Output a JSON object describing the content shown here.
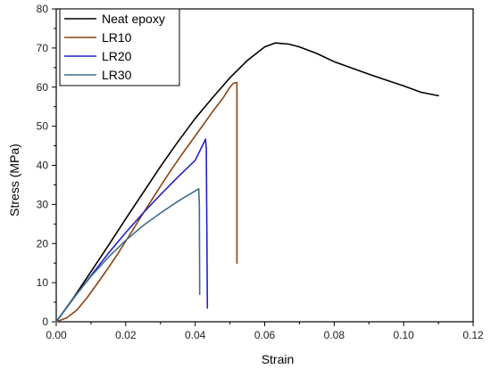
{
  "chart_data": {
    "type": "line",
    "title": "",
    "xlabel": "Strain",
    "ylabel": "Stress (MPa)",
    "xlim": [
      0.0,
      0.12
    ],
    "ylim": [
      0,
      80
    ],
    "xticks": [
      0.0,
      0.02,
      0.04,
      0.06,
      0.08,
      0.1,
      0.12
    ],
    "xtick_labels": [
      "0.00",
      "0.02",
      "0.04",
      "0.06",
      "0.08",
      "0.10",
      "0.12"
    ],
    "yticks": [
      0,
      10,
      20,
      30,
      40,
      50,
      60,
      70,
      80
    ],
    "ytick_labels": [
      "0",
      "10",
      "20",
      "30",
      "40",
      "50",
      "60",
      "70",
      "80"
    ],
    "grid": false,
    "legend_position": "top-left",
    "series": [
      {
        "name": "Neat epoxy",
        "color": "#000000",
        "x": [
          0,
          0.005,
          0.01,
          0.015,
          0.02,
          0.025,
          0.03,
          0.035,
          0.04,
          0.045,
          0.05,
          0.055,
          0.06,
          0.063,
          0.067,
          0.07,
          0.075,
          0.08,
          0.085,
          0.09,
          0.095,
          0.1,
          0.105,
          0.11
        ],
        "y": [
          0,
          6.2,
          12.8,
          19.5,
          26.3,
          33.0,
          39.7,
          46.0,
          52.0,
          57.3,
          62.4,
          66.8,
          70.3,
          71.3,
          71.0,
          70.3,
          68.6,
          66.5,
          64.9,
          63.3,
          61.8,
          60.3,
          58.7,
          57.8
        ]
      },
      {
        "name": "LR10",
        "color": "#8B4513",
        "x": [
          0,
          0.003,
          0.006,
          0.009,
          0.012,
          0.015,
          0.018,
          0.021,
          0.024,
          0.027,
          0.03,
          0.033,
          0.036,
          0.039,
          0.042,
          0.045,
          0.048,
          0.05,
          0.051,
          0.052,
          0.052
        ],
        "y": [
          0,
          1.0,
          3.0,
          6.3,
          10.0,
          13.8,
          17.8,
          22.0,
          26.3,
          30.5,
          34.7,
          38.7,
          42.6,
          46.3,
          50.0,
          53.7,
          57.2,
          60.0,
          61.0,
          61.2,
          15.0
        ]
      },
      {
        "name": "LR20",
        "color": "#2222CC",
        "x": [
          0,
          0.005,
          0.01,
          0.015,
          0.02,
          0.025,
          0.03,
          0.035,
          0.04,
          0.043,
          0.0432,
          0.0435
        ],
        "y": [
          0,
          6.0,
          11.8,
          17.5,
          22.8,
          27.8,
          32.5,
          37.0,
          41.3,
          46.7,
          44.0,
          3.5
        ]
      },
      {
        "name": "LR30",
        "color": "#3C6E8C",
        "x": [
          0,
          0.005,
          0.01,
          0.015,
          0.02,
          0.025,
          0.03,
          0.035,
          0.038,
          0.041,
          0.0412,
          0.0413
        ],
        "y": [
          0,
          6.1,
          11.6,
          16.5,
          20.8,
          24.6,
          27.8,
          30.8,
          32.4,
          34.0,
          30.0,
          7.0
        ]
      }
    ]
  }
}
